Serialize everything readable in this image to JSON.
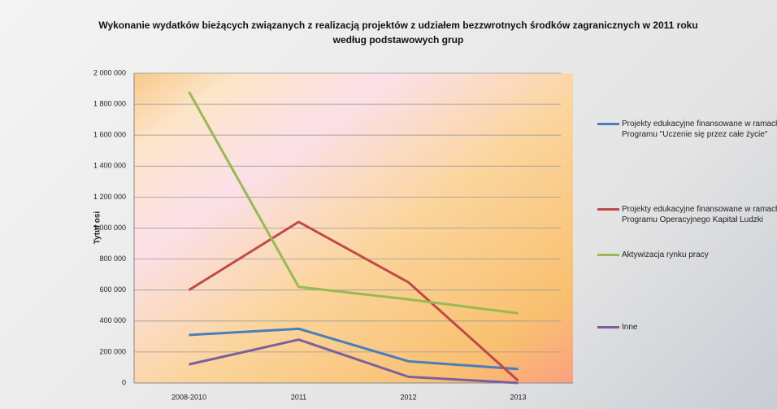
{
  "chart_data": {
    "type": "line",
    "title": "Wykonanie wydatków bieżących związanych z realizacją projektów z udziałem bezzwrotnych środków zagranicznych  w 2011 roku według podstawowych grup",
    "y_label": "Tytuł osi",
    "categories": [
      "2008-2010",
      "2011",
      "2012",
      "2013"
    ],
    "series": [
      {
        "name": "Projekty edukacyjne finansowane w ramach Programu \"Uczenie się przez całe życie\"",
        "color": "#4a7ebb",
        "values": [
          310000,
          350000,
          140000,
          90000
        ]
      },
      {
        "name": "Projekty edukacyjne finansowane w ramach Programu Operacyjnego Kapitał Ludzki",
        "color": "#be4b48",
        "values": [
          600000,
          1040000,
          650000,
          15000
        ]
      },
      {
        "name": "Aktywizacja rynku pracy",
        "color": "#98b954",
        "values": [
          1880000,
          620000,
          540000,
          450000
        ]
      },
      {
        "name": "Inne",
        "color": "#7d5fa0",
        "values": [
          120000,
          280000,
          40000,
          0
        ]
      }
    ],
    "ylim": [
      0,
      2000000
    ],
    "yticks": [
      0,
      {
        "value": 200000,
        "label": "200 000"
      },
      {
        "value": 400000,
        "label": "400 000"
      },
      {
        "value": 600000,
        "label": "600 000"
      },
      {
        "value": 800000,
        "label": "800 000"
      },
      {
        "value": 1000000,
        "label": "1 000 000"
      },
      {
        "value": 1200000,
        "label": "1 200 000"
      },
      {
        "value": 1400000,
        "label": "1 400 000"
      },
      {
        "value": 1600000,
        "label": "1 600 000"
      },
      {
        "value": 1800000,
        "label": "1 800 000"
      },
      {
        "value": 2000000,
        "label": "2 000 000"
      }
    ],
    "grid": true,
    "legend": "right"
  }
}
